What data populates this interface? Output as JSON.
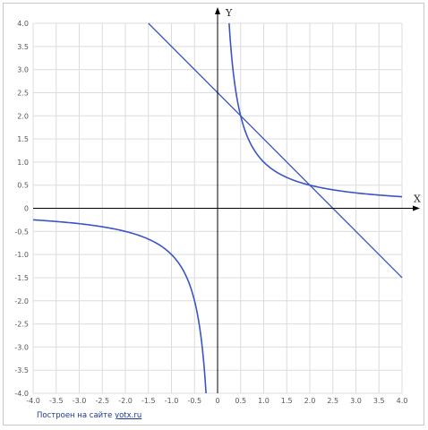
{
  "chart_data": {
    "type": "line",
    "xlabel": "X",
    "ylabel": "Y",
    "xlim": [
      -4,
      4
    ],
    "ylim": [
      -4,
      4
    ],
    "grid": true,
    "x_ticks": [
      "-4.0",
      "-3.5",
      "-3.0",
      "-2.5",
      "-2.0",
      "-1.5",
      "-1.0",
      "-0.5",
      "0",
      "0.5",
      "1.0",
      "1.5",
      "2.0",
      "2.5",
      "3.0",
      "3.5",
      "4.0"
    ],
    "y_ticks": [
      "4.0",
      "3.5",
      "3.0",
      "2.5",
      "2.0",
      "1.5",
      "1.0",
      "0.5",
      "0",
      "-0.5",
      "-1.0",
      "-1.5",
      "-2.0",
      "-2.5",
      "-3.0",
      "-3.5",
      "-4.0"
    ],
    "series": [
      {
        "kind": "hyperbola",
        "x": [
          -4.0,
          -3.5,
          -3.0,
          -2.5,
          -2.0,
          -1.5,
          -1.0,
          -0.75,
          -0.5,
          -0.4,
          -0.3,
          -0.25,
          0.25,
          0.3,
          0.4,
          0.5,
          0.75,
          1.0,
          1.5,
          2.0,
          2.5,
          3.0,
          3.5,
          4.0
        ],
        "y": [
          -0.25,
          -0.286,
          -0.333,
          -0.4,
          -0.5,
          -0.667,
          -1.0,
          -1.333,
          -2.0,
          -2.5,
          -3.333,
          -4.0,
          4.0,
          3.333,
          2.5,
          2.0,
          1.333,
          1.0,
          0.667,
          0.5,
          0.4,
          0.333,
          0.286,
          0.25
        ]
      },
      {
        "kind": "line",
        "x": [
          -1.5,
          4.0
        ],
        "y": [
          4.0,
          -1.5
        ]
      }
    ],
    "colors": {
      "series": "#3a55c4",
      "grid": "#dcdcdc",
      "axis": "#000000"
    }
  },
  "footer": {
    "credit_text": "Построен на сайте ",
    "credit_link": "yotx.ru"
  }
}
